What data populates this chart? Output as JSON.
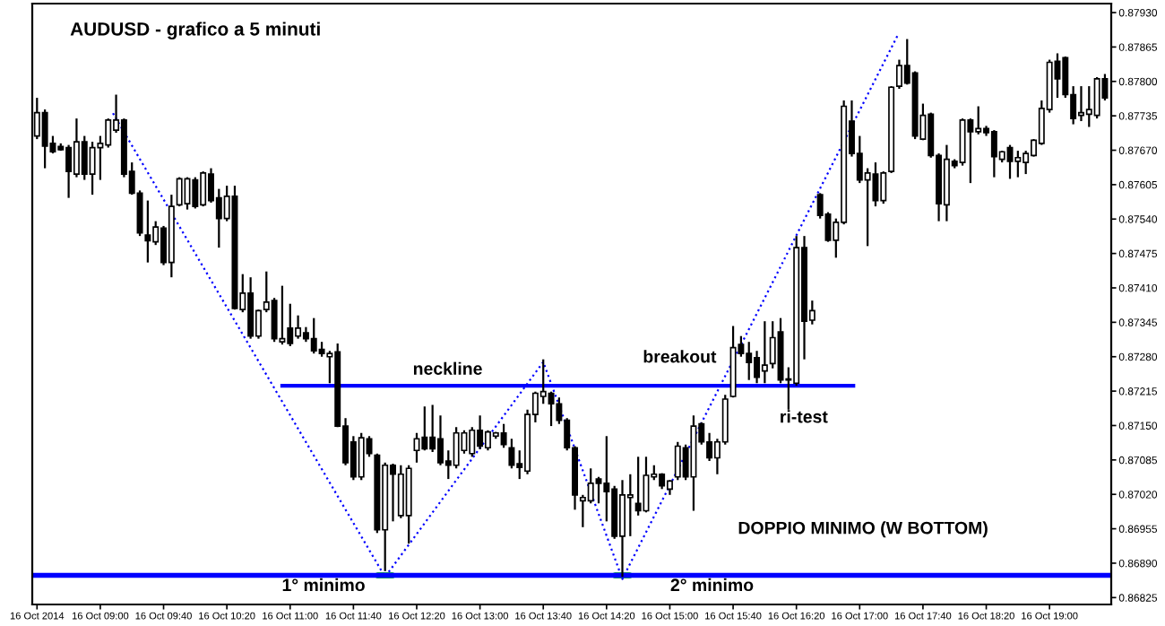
{
  "chart_data": {
    "type": "candlestick",
    "title": "AUDUSD - grafico a 5 minuti",
    "x": [
      "2014-10-16T08:20",
      "2014-10-16T08:25",
      "2014-10-16T08:30",
      "2014-10-16T08:35",
      "2014-10-16T08:40",
      "2014-10-16T08:45",
      "2014-10-16T08:50",
      "2014-10-16T08:55",
      "2014-10-16T09:00",
      "2014-10-16T09:05",
      "2014-10-16T09:10",
      "2014-10-16T09:15",
      "2014-10-16T09:20",
      "2014-10-16T09:25",
      "2014-10-16T09:30",
      "2014-10-16T09:35",
      "2014-10-16T09:40",
      "2014-10-16T09:45",
      "2014-10-16T09:50",
      "2014-10-16T09:55",
      "2014-10-16T10:00",
      "2014-10-16T10:05",
      "2014-10-16T10:10",
      "2014-10-16T10:15",
      "2014-10-16T10:20",
      "2014-10-16T10:25",
      "2014-10-16T10:30",
      "2014-10-16T10:35",
      "2014-10-16T10:40",
      "2014-10-16T10:45",
      "2014-10-16T10:50",
      "2014-10-16T10:55",
      "2014-10-16T11:00",
      "2014-10-16T11:05",
      "2014-10-16T11:10",
      "2014-10-16T11:15",
      "2014-10-16T11:20",
      "2014-10-16T11:25",
      "2014-10-16T11:30",
      "2014-10-16T11:35",
      "2014-10-16T11:40",
      "2014-10-16T11:45",
      "2014-10-16T11:50",
      "2014-10-16T11:55",
      "2014-10-16T12:00",
      "2014-10-16T12:05",
      "2014-10-16T12:10",
      "2014-10-16T12:15",
      "2014-10-16T12:20",
      "2014-10-16T12:25",
      "2014-10-16T12:30",
      "2014-10-16T12:35",
      "2014-10-16T12:40",
      "2014-10-16T12:45",
      "2014-10-16T12:50",
      "2014-10-16T12:55",
      "2014-10-16T13:00",
      "2014-10-16T13:05",
      "2014-10-16T13:10",
      "2014-10-16T13:15",
      "2014-10-16T13:20",
      "2014-10-16T13:25",
      "2014-10-16T13:30",
      "2014-10-16T13:35",
      "2014-10-16T13:40",
      "2014-10-16T13:45",
      "2014-10-16T13:50",
      "2014-10-16T13:55",
      "2014-10-16T14:00",
      "2014-10-16T14:05",
      "2014-10-16T14:10",
      "2014-10-16T14:15",
      "2014-10-16T14:20",
      "2014-10-16T14:25",
      "2014-10-16T14:30",
      "2014-10-16T14:35",
      "2014-10-16T14:40",
      "2014-10-16T14:45",
      "2014-10-16T14:50",
      "2014-10-16T14:55",
      "2014-10-16T15:00",
      "2014-10-16T15:05",
      "2014-10-16T15:10",
      "2014-10-16T15:15",
      "2014-10-16T15:20",
      "2014-10-16T15:25",
      "2014-10-16T15:30",
      "2014-10-16T15:35",
      "2014-10-16T15:40",
      "2014-10-16T15:45",
      "2014-10-16T15:50",
      "2014-10-16T15:55",
      "2014-10-16T16:00",
      "2014-10-16T16:05",
      "2014-10-16T16:10",
      "2014-10-16T16:15",
      "2014-10-16T16:20",
      "2014-10-16T16:25",
      "2014-10-16T16:30",
      "2014-10-16T16:35",
      "2014-10-16T16:40",
      "2014-10-16T16:45",
      "2014-10-16T16:50",
      "2014-10-16T16:55",
      "2014-10-16T17:00",
      "2014-10-16T17:05",
      "2014-10-16T17:10",
      "2014-10-16T17:15",
      "2014-10-16T17:20",
      "2014-10-16T17:25",
      "2014-10-16T17:30",
      "2014-10-16T17:35",
      "2014-10-16T17:40",
      "2014-10-16T17:45",
      "2014-10-16T17:50",
      "2014-10-16T17:55",
      "2014-10-16T18:00",
      "2014-10-16T18:05",
      "2014-10-16T18:10",
      "2014-10-16T18:15",
      "2014-10-16T18:20",
      "2014-10-16T18:25",
      "2014-10-16T18:30",
      "2014-10-16T18:35",
      "2014-10-16T18:40",
      "2014-10-16T18:45",
      "2014-10-16T18:50",
      "2014-10-16T18:55",
      "2014-10-16T19:00",
      "2014-10-16T19:05",
      "2014-10-16T19:10",
      "2014-10-16T19:15",
      "2014-10-16T19:20",
      "2014-10-16T19:25",
      "2014-10-16T19:30",
      "2014-10-16T19:35"
    ],
    "ohlc": [
      [
        0.87697,
        0.87769,
        0.87691,
        0.87741
      ],
      [
        0.87741,
        0.87747,
        0.87636,
        0.87678
      ],
      [
        0.87683,
        0.87697,
        0.87664,
        0.87667
      ],
      [
        0.87677,
        0.87683,
        0.87669,
        0.87671
      ],
      [
        0.87675,
        0.8768,
        0.8758,
        0.8763
      ],
      [
        0.87625,
        0.8773,
        0.87619,
        0.87686
      ],
      [
        0.87686,
        0.87697,
        0.87614,
        0.87625
      ],
      [
        0.87625,
        0.87686,
        0.87586,
        0.87675
      ],
      [
        0.87675,
        0.87697,
        0.87614,
        0.87683
      ],
      [
        0.8768,
        0.8773,
        0.87675,
        0.87727
      ],
      [
        0.87708,
        0.87775,
        0.87703,
        0.87727
      ],
      [
        0.87727,
        0.8773,
        0.87619,
        0.87625
      ],
      [
        0.8763,
        0.87647,
        0.87586,
        0.87589
      ],
      [
        0.87589,
        0.87594,
        0.87508,
        0.87514
      ],
      [
        0.8751,
        0.87575,
        0.87458,
        0.87499
      ],
      [
        0.87497,
        0.87536,
        0.87491,
        0.87525
      ],
      [
        0.87523,
        0.87527,
        0.87453,
        0.87458
      ],
      [
        0.87458,
        0.87586,
        0.8743,
        0.87564
      ],
      [
        0.87567,
        0.87619,
        0.87564,
        0.87616
      ],
      [
        0.87569,
        0.87619,
        0.87558,
        0.87616
      ],
      [
        0.87614,
        0.87619,
        0.8756,
        0.87564
      ],
      [
        0.87567,
        0.8763,
        0.87564,
        0.87627
      ],
      [
        0.87625,
        0.87636,
        0.87571,
        0.87575
      ],
      [
        0.8758,
        0.87597,
        0.87486,
        0.87541
      ],
      [
        0.87541,
        0.87603,
        0.87536,
        0.87583
      ],
      [
        0.87583,
        0.87603,
        0.87369,
        0.87371
      ],
      [
        0.87369,
        0.87436,
        0.87364,
        0.874
      ],
      [
        0.874,
        0.8743,
        0.87314,
        0.87319
      ],
      [
        0.87319,
        0.87369,
        0.87314,
        0.87367
      ],
      [
        0.87369,
        0.87441,
        0.87364,
        0.87383
      ],
      [
        0.87386,
        0.87391,
        0.87308,
        0.87314
      ],
      [
        0.87308,
        0.87414,
        0.87303,
        0.87314
      ],
      [
        0.87334,
        0.8738,
        0.873,
        0.87305
      ],
      [
        0.87319,
        0.87358,
        0.87314,
        0.87334
      ],
      [
        0.87325,
        0.87336,
        0.87308,
        0.87314
      ],
      [
        0.87314,
        0.87353,
        0.87286,
        0.87291
      ],
      [
        0.87294,
        0.87308,
        0.8728,
        0.87286
      ],
      [
        0.8728,
        0.87291,
        0.8723,
        0.87286
      ],
      [
        0.87289,
        0.87305,
        0.87147,
        0.87149
      ],
      [
        0.87149,
        0.87164,
        0.87075,
        0.8708
      ],
      [
        0.87119,
        0.8713,
        0.87047,
        0.87053
      ],
      [
        0.87053,
        0.87136,
        0.87047,
        0.87127
      ],
      [
        0.87125,
        0.8713,
        0.87091,
        0.87097
      ],
      [
        0.87094,
        0.87097,
        0.86947,
        0.86953
      ],
      [
        0.86953,
        0.8708,
        0.86875,
        0.87075
      ],
      [
        0.87075,
        0.87078,
        0.86969,
        0.87058
      ],
      [
        0.8698,
        0.87075,
        0.86975,
        0.87058
      ],
      [
        0.8698,
        0.87075,
        0.86927,
        0.87069
      ],
      [
        0.87103,
        0.87136,
        0.8708,
        0.87125
      ],
      [
        0.87128,
        0.87186,
        0.87103,
        0.87106
      ],
      [
        0.87128,
        0.87189,
        0.871,
        0.87106
      ],
      [
        0.87125,
        0.87169,
        0.87075,
        0.8708
      ],
      [
        0.87083,
        0.87103,
        0.87049,
        0.87075
      ],
      [
        0.87075,
        0.87147,
        0.87069,
        0.87136
      ],
      [
        0.87103,
        0.87141,
        0.87097,
        0.87136
      ],
      [
        0.87097,
        0.87147,
        0.87091,
        0.87141
      ],
      [
        0.87141,
        0.87169,
        0.87105,
        0.87111
      ],
      [
        0.87108,
        0.87141,
        0.87103,
        0.87138
      ],
      [
        0.8713,
        0.87138,
        0.87125,
        0.87136
      ],
      [
        0.87136,
        0.87153,
        0.87108,
        0.87114
      ],
      [
        0.87108,
        0.87125,
        0.87069,
        0.87075
      ],
      [
        0.87078,
        0.87103,
        0.87049,
        0.87071
      ],
      [
        0.87064,
        0.8718,
        0.87058,
        0.87171
      ],
      [
        0.87171,
        0.87214,
        0.87156,
        0.87211
      ],
      [
        0.87205,
        0.87275,
        0.87191,
        0.87214
      ],
      [
        0.87211,
        0.87214,
        0.87149,
        0.87191
      ],
      [
        0.87191,
        0.87203,
        0.87153,
        0.8716
      ],
      [
        0.8716,
        0.87164,
        0.87103,
        0.87108
      ],
      [
        0.87108,
        0.87111,
        0.86991,
        0.87019
      ],
      [
        0.87008,
        0.87019,
        0.86958,
        0.87014
      ],
      [
        0.87008,
        0.87069,
        0.87003,
        0.87041
      ],
      [
        0.87049,
        0.87053,
        0.87003,
        0.87041
      ],
      [
        0.87041,
        0.8713,
        0.86969,
        0.87025
      ],
      [
        0.8703,
        0.87036,
        0.86936,
        0.86941
      ],
      [
        0.86941,
        0.87047,
        0.86864,
        0.87019
      ],
      [
        0.87014,
        0.87058,
        0.86941,
        0.87019
      ],
      [
        0.87003,
        0.87091,
        0.8698,
        0.86989
      ],
      [
        0.86989,
        0.87091,
        0.86986,
        0.87056
      ],
      [
        0.87053,
        0.87075,
        0.87047,
        0.87058
      ],
      [
        0.87058,
        0.8706,
        0.8703,
        0.87036
      ],
      [
        0.8703,
        0.87047,
        0.87019,
        0.87045
      ],
      [
        0.87053,
        0.87119,
        0.87047,
        0.87111
      ],
      [
        0.87108,
        0.87114,
        0.87047,
        0.87053
      ],
      [
        0.87053,
        0.87169,
        0.86989,
        0.87149
      ],
      [
        0.87153,
        0.87156,
        0.87114,
        0.87119
      ],
      [
        0.87119,
        0.87136,
        0.87083,
        0.87089
      ],
      [
        0.87089,
        0.87125,
        0.87058,
        0.87119
      ],
      [
        0.87119,
        0.87208,
        0.87114,
        0.872
      ],
      [
        0.87205,
        0.87338,
        0.87203,
        0.87297
      ],
      [
        0.87303,
        0.87319,
        0.8728,
        0.87286
      ],
      [
        0.87286,
        0.87308,
        0.87236,
        0.87269
      ],
      [
        0.87278,
        0.87291,
        0.8723,
        0.87241
      ],
      [
        0.87253,
        0.87347,
        0.8723,
        0.87264
      ],
      [
        0.87267,
        0.87347,
        0.87258,
        0.87316
      ],
      [
        0.87327,
        0.87353,
        0.8723,
        0.87236
      ],
      [
        0.87238,
        0.8726,
        0.8718,
        0.87236
      ],
      [
        0.8723,
        0.87508,
        0.87225,
        0.87486
      ],
      [
        0.87486,
        0.87508,
        0.87275,
        0.87347
      ],
      [
        0.87349,
        0.87386,
        0.87341,
        0.87367
      ],
      [
        0.87586,
        0.87589,
        0.87541,
        0.87547
      ],
      [
        0.87549,
        0.87553,
        0.87497,
        0.875
      ],
      [
        0.875,
        0.87541,
        0.87467,
        0.87534
      ],
      [
        0.87534,
        0.87764,
        0.8753,
        0.87753
      ],
      [
        0.87725,
        0.87764,
        0.87658,
        0.87664
      ],
      [
        0.87664,
        0.87697,
        0.87608,
        0.87614
      ],
      [
        0.87614,
        0.87636,
        0.87489,
        0.87627
      ],
      [
        0.87625,
        0.87647,
        0.87564,
        0.87575
      ],
      [
        0.87575,
        0.8763,
        0.87569,
        0.87627
      ],
      [
        0.8763,
        0.87791,
        0.87627,
        0.87789
      ],
      [
        0.87791,
        0.87841,
        0.87786,
        0.8783
      ],
      [
        0.8783,
        0.8788,
        0.87794,
        0.87797
      ],
      [
        0.87816,
        0.87819,
        0.87691,
        0.87697
      ],
      [
        0.87691,
        0.87758,
        0.87689,
        0.87736
      ],
      [
        0.87738,
        0.87741,
        0.87656,
        0.8766
      ],
      [
        0.8766,
        0.87664,
        0.87536,
        0.87569
      ],
      [
        0.87567,
        0.8768,
        0.87536,
        0.87653
      ],
      [
        0.87649,
        0.87653,
        0.87636,
        0.87641
      ],
      [
        0.87647,
        0.8773,
        0.87641,
        0.87727
      ],
      [
        0.87727,
        0.8773,
        0.87608,
        0.87705
      ],
      [
        0.87705,
        0.87753,
        0.877,
        0.87711
      ],
      [
        0.87711,
        0.87716,
        0.87697,
        0.87703
      ],
      [
        0.87705,
        0.87708,
        0.87619,
        0.87658
      ],
      [
        0.87653,
        0.87669,
        0.87647,
        0.87667
      ],
      [
        0.87675,
        0.8768,
        0.87616,
        0.87649
      ],
      [
        0.87649,
        0.87669,
        0.87619,
        0.87656
      ],
      [
        0.87647,
        0.87669,
        0.87625,
        0.87664
      ],
      [
        0.8766,
        0.87691,
        0.87658,
        0.87689
      ],
      [
        0.87683,
        0.87764,
        0.8768,
        0.87749
      ],
      [
        0.87747,
        0.87841,
        0.87741,
        0.87836
      ],
      [
        0.87838,
        0.87853,
        0.87769,
        0.87805
      ],
      [
        0.87845,
        0.87847,
        0.87769,
        0.87775
      ],
      [
        0.87775,
        0.87791,
        0.87719,
        0.8773
      ],
      [
        0.87736,
        0.87791,
        0.87725,
        0.87741
      ],
      [
        0.87738,
        0.87791,
        0.87714,
        0.87747
      ],
      [
        0.87736,
        0.87808,
        0.8773,
        0.87805
      ],
      [
        0.87805,
        0.87814,
        0.87764,
        0.87769
      ]
    ],
    "series": [
      {
        "type": "line",
        "color": "#0000ff",
        "line_style": "dotted",
        "x": [
          "2014-10-16T09:08",
          "2014-10-16T12:00",
          "2014-10-16T13:40",
          "2014-10-16T14:30",
          "2014-10-16T17:24"
        ],
        "values": [
          0.8774,
          0.86864,
          0.8727,
          0.8686,
          0.87887
        ]
      },
      {
        "type": "line",
        "color": "#0000ff",
        "line_style": "solid",
        "x": [
          "2014-10-16T10:55",
          "2014-10-16T16:56"
        ],
        "values": [
          0.87225,
          0.87225
        ]
      }
    ],
    "ref_lines": [
      {
        "axis": "y",
        "value": 0.86867,
        "color": "#0000ff",
        "line_style": "solid"
      }
    ],
    "annotations": [
      "neckline",
      "breakout",
      "ri-test",
      "1° minimo",
      "2° minimo",
      "DOPPIO MINIMO (W BOTTOM)"
    ],
    "xlim": [
      "2014-10-16T08:17",
      "2014-10-16T19:39"
    ],
    "xticks": [
      {
        "value": "2014-10-16T08:20",
        "label": "16 Oct 2014"
      },
      {
        "value": "2014-10-16T09:00",
        "label": "16 Oct 09:00"
      },
      {
        "value": "2014-10-16T09:40",
        "label": "16 Oct 09:40"
      },
      {
        "value": "2014-10-16T10:20",
        "label": "16 Oct 10:20"
      },
      {
        "value": "2014-10-16T11:00",
        "label": "16 Oct 11:00"
      },
      {
        "value": "2014-10-16T11:40",
        "label": "16 Oct 11:40"
      },
      {
        "value": "2014-10-16T12:20",
        "label": "16 Oct 12:20"
      },
      {
        "value": "2014-10-16T13:00",
        "label": "16 Oct 13:00"
      },
      {
        "value": "2014-10-16T13:40",
        "label": "16 Oct 13:40"
      },
      {
        "value": "2014-10-16T14:20",
        "label": "16 Oct 14:20"
      },
      {
        "value": "2014-10-16T15:00",
        "label": "16 Oct 15:00"
      },
      {
        "value": "2014-10-16T15:40",
        "label": "16 Oct 15:40"
      },
      {
        "value": "2014-10-16T16:20",
        "label": "16 Oct 16:20"
      },
      {
        "value": "2014-10-16T17:00",
        "label": "16 Oct 17:00"
      },
      {
        "value": "2014-10-16T17:40",
        "label": "16 Oct 17:40"
      },
      {
        "value": "2014-10-16T18:20",
        "label": "16 Oct 18:20"
      },
      {
        "value": "2014-10-16T19:00",
        "label": "16 Oct 19:00"
      }
    ],
    "ylim": [
      0.86812,
      0.87947
    ],
    "yticks": [
      {
        "value": 0.8793,
        "label": "0.87930"
      },
      {
        "value": 0.87865,
        "label": "0.87865"
      },
      {
        "value": 0.878,
        "label": "0.87800"
      },
      {
        "value": 0.87735,
        "label": "0.87735"
      },
      {
        "value": 0.8767,
        "label": "0.87670"
      },
      {
        "value": 0.87605,
        "label": "0.87605"
      },
      {
        "value": 0.8754,
        "label": "0.87540"
      },
      {
        "value": 0.87475,
        "label": "0.87475"
      },
      {
        "value": 0.8741,
        "label": "0.87410"
      },
      {
        "value": 0.87345,
        "label": "0.87345"
      },
      {
        "value": 0.8728,
        "label": "0.87280"
      },
      {
        "value": 0.87215,
        "label": "0.87215"
      },
      {
        "value": 0.8715,
        "label": "0.87150"
      },
      {
        "value": 0.87085,
        "label": "0.87085"
      },
      {
        "value": 0.8702,
        "label": "0.87020"
      },
      {
        "value": 0.86955,
        "label": "0.86955"
      },
      {
        "value": 0.8689,
        "label": "0.86890"
      },
      {
        "value": 0.86825,
        "label": "0.86825"
      }
    ]
  }
}
